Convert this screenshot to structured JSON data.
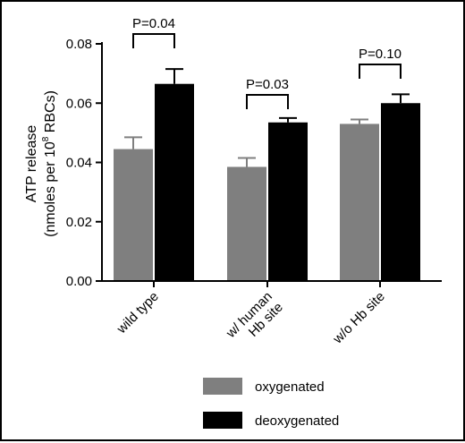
{
  "chart_data": {
    "type": "bar",
    "categories": [
      [
        "wild type"
      ],
      [
        "w/ human",
        "Hb site"
      ],
      [
        "w/o Hb site"
      ]
    ],
    "series": [
      {
        "name": "oxygenated",
        "color": "#7f7f7f",
        "values": [
          0.0445,
          0.0385,
          0.053
        ],
        "errors": [
          0.004,
          0.003,
          0.0015
        ]
      },
      {
        "name": "deoxygenated",
        "color": "#000000",
        "values": [
          0.0665,
          0.0535,
          0.06
        ],
        "errors": [
          0.005,
          0.0015,
          0.003
        ]
      }
    ],
    "ylabel": {
      "line1": "ATP release",
      "line2_pre": "(nmoles per 10",
      "line2_sup": "8",
      "line2_post": " RBCs)"
    },
    "ylim": [
      0,
      0.08
    ],
    "yticks": [
      0.0,
      0.02,
      0.04,
      0.06,
      0.08
    ],
    "ytick_labels": [
      "0.00",
      "0.02",
      "0.04",
      "0.06",
      "0.08"
    ],
    "annotations": [
      "P=0.04",
      "P=0.03",
      "P=0.10"
    ],
    "legend": {
      "placement": "bottom"
    },
    "grid": false
  }
}
